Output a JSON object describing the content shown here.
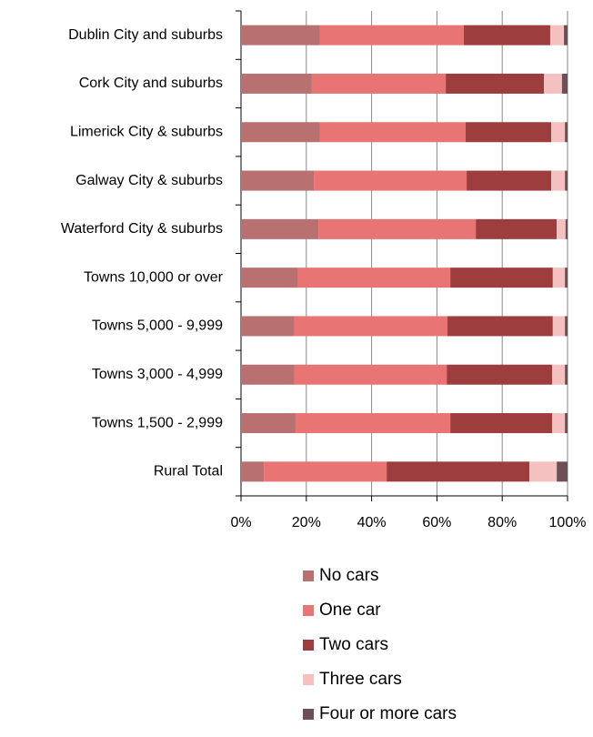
{
  "chart_data": {
    "type": "stacked_bar_horizontal",
    "categories": [
      "Dublin City and suburbs",
      "Cork City and suburbs",
      "Limerick City & suburbs",
      "Galway City & suburbs",
      "Waterford City & suburbs",
      "Towns 10,000 or over",
      "Towns 5,000 - 9,999",
      "Towns 3,000 - 4,999",
      "Towns 1,500 - 2,999",
      "Rural Total"
    ],
    "series": [
      {
        "name": "No cars",
        "color": "#b87070",
        "values": [
          24.2,
          21.7,
          24.2,
          22.3,
          23.7,
          17.5,
          16.4,
          16.4,
          16.7,
          7.0
        ]
      },
      {
        "name": "One car",
        "color": "#e87474",
        "values": [
          44.0,
          41.0,
          44.6,
          46.8,
          48.2,
          46.6,
          46.8,
          46.6,
          47.4,
          37.6
        ]
      },
      {
        "name": "Two cars",
        "color": "#9e3d3d",
        "values": [
          26.5,
          30.1,
          26.2,
          25.9,
          24.8,
          31.4,
          32.3,
          32.3,
          31.2,
          43.7
        ]
      },
      {
        "name": "Three cars",
        "color": "#f4c0c0",
        "values": [
          4.2,
          5.5,
          4.2,
          4.2,
          2.7,
          3.7,
          3.7,
          3.9,
          3.9,
          8.4
        ]
      },
      {
        "name": "Four or more cars",
        "color": "#6e4f55",
        "values": [
          1.1,
          1.7,
          0.8,
          0.8,
          0.6,
          0.8,
          0.8,
          0.8,
          0.8,
          3.3
        ]
      }
    ],
    "xlim": [
      0,
      100
    ],
    "xticks": [
      {
        "value": 0,
        "label": "0%"
      },
      {
        "value": 20,
        "label": "20%"
      },
      {
        "value": 40,
        "label": "40%"
      },
      {
        "value": 60,
        "label": "60%"
      },
      {
        "value": 80,
        "label": "80%"
      },
      {
        "value": 100,
        "label": "100%"
      }
    ],
    "grid": true
  }
}
